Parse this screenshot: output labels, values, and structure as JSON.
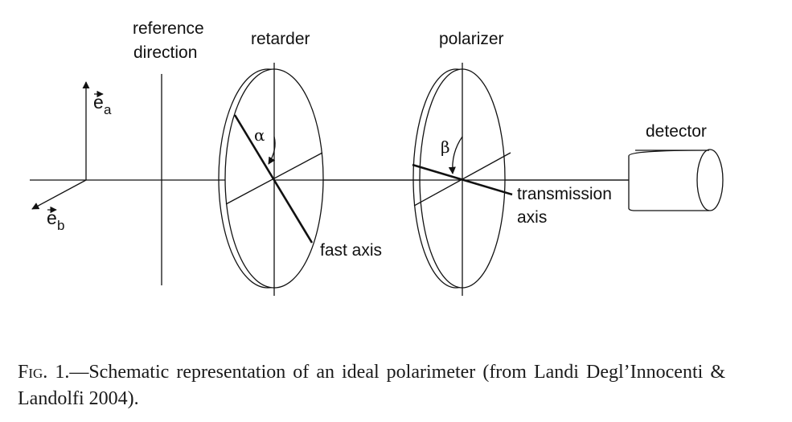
{
  "diagram": {
    "labels": {
      "reference_line1": "reference",
      "reference_line2": "direction",
      "retarder": "retarder",
      "polarizer": "polarizer",
      "detector": "detector",
      "fast_axis": "fast axis",
      "transmission_line1": "transmission",
      "transmission_line2": "axis",
      "alpha": "α",
      "beta": "β",
      "ea_base": "e",
      "ea_sub": "a",
      "eb_base": "e",
      "eb_sub": "b"
    },
    "line_color": "#111111"
  },
  "caption": {
    "label": "Fig. 1.",
    "text": "—Schematic representation of an ideal polarimeter (from Landi Degl’Innocenti & Landolfi 2004)."
  }
}
